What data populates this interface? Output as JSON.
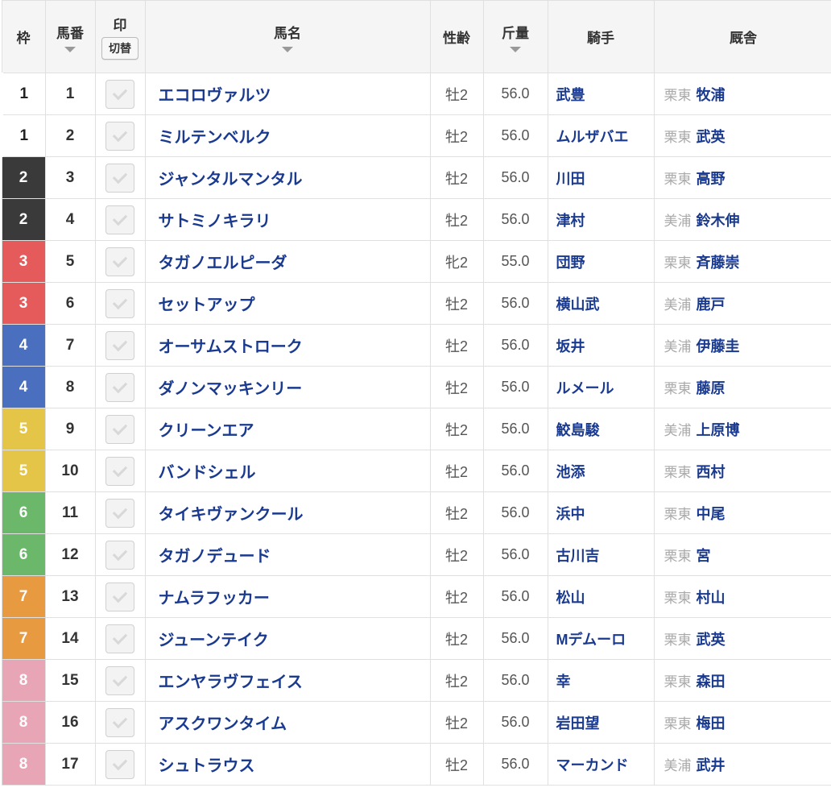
{
  "headers": {
    "waku": "枠",
    "umaban": "馬番",
    "mark": "印",
    "toggle": "切替",
    "name": "馬名",
    "sexage": "性齢",
    "weight": "斤量",
    "jockey": "騎手",
    "stable": "厩舎"
  },
  "colors": {
    "link": "#1a3a8f",
    "header_bg": "#f5f5f5",
    "border": "#e0e0e0",
    "muted": "#aaaaaa",
    "text": "#555555",
    "waku": {
      "1": "#ffffff",
      "2": "#3a3a3a",
      "3": "#e55a5a",
      "4": "#4a6fbf",
      "5": "#e5c548",
      "6": "#6bb86b",
      "7": "#e79a3f",
      "8": "#e8a5b5"
    }
  },
  "rows": [
    {
      "waku": "1",
      "uma": "1",
      "name": "エコロヴァルツ",
      "sexage": "牡2",
      "weight": "56.0",
      "jockey": "武豊",
      "area": "栗東",
      "trainer": "牧浦"
    },
    {
      "waku": "1",
      "uma": "2",
      "name": "ミルテンベルク",
      "sexage": "牡2",
      "weight": "56.0",
      "jockey": "ムルザバエ",
      "area": "栗東",
      "trainer": "武英"
    },
    {
      "waku": "2",
      "uma": "3",
      "name": "ジャンタルマンタル",
      "sexage": "牡2",
      "weight": "56.0",
      "jockey": "川田",
      "area": "栗東",
      "trainer": "高野"
    },
    {
      "waku": "2",
      "uma": "4",
      "name": "サトミノキラリ",
      "sexage": "牡2",
      "weight": "56.0",
      "jockey": "津村",
      "area": "美浦",
      "trainer": "鈴木伸"
    },
    {
      "waku": "3",
      "uma": "5",
      "name": "タガノエルピーダ",
      "sexage": "牝2",
      "weight": "55.0",
      "jockey": "団野",
      "area": "栗東",
      "trainer": "斉藤崇"
    },
    {
      "waku": "3",
      "uma": "6",
      "name": "セットアップ",
      "sexage": "牡2",
      "weight": "56.0",
      "jockey": "横山武",
      "area": "美浦",
      "trainer": "鹿戸"
    },
    {
      "waku": "4",
      "uma": "7",
      "name": "オーサムストローク",
      "sexage": "牡2",
      "weight": "56.0",
      "jockey": "坂井",
      "area": "美浦",
      "trainer": "伊藤圭"
    },
    {
      "waku": "4",
      "uma": "8",
      "name": "ダノンマッキンリー",
      "sexage": "牡2",
      "weight": "56.0",
      "jockey": "ルメール",
      "area": "栗東",
      "trainer": "藤原"
    },
    {
      "waku": "5",
      "uma": "9",
      "name": "クリーンエア",
      "sexage": "牡2",
      "weight": "56.0",
      "jockey": "鮫島駿",
      "area": "美浦",
      "trainer": "上原博"
    },
    {
      "waku": "5",
      "uma": "10",
      "name": "バンドシェル",
      "sexage": "牡2",
      "weight": "56.0",
      "jockey": "池添",
      "area": "栗東",
      "trainer": "西村"
    },
    {
      "waku": "6",
      "uma": "11",
      "name": "タイキヴァンクール",
      "sexage": "牡2",
      "weight": "56.0",
      "jockey": "浜中",
      "area": "栗東",
      "trainer": "中尾"
    },
    {
      "waku": "6",
      "uma": "12",
      "name": "タガノデュード",
      "sexage": "牡2",
      "weight": "56.0",
      "jockey": "古川吉",
      "area": "栗東",
      "trainer": "宮"
    },
    {
      "waku": "7",
      "uma": "13",
      "name": "ナムラフッカー",
      "sexage": "牡2",
      "weight": "56.0",
      "jockey": "松山",
      "area": "栗東",
      "trainer": "村山"
    },
    {
      "waku": "7",
      "uma": "14",
      "name": "ジューンテイク",
      "sexage": "牡2",
      "weight": "56.0",
      "jockey": "Mデムーロ",
      "area": "栗東",
      "trainer": "武英"
    },
    {
      "waku": "8",
      "uma": "15",
      "name": "エンヤラヴフェイス",
      "sexage": "牡2",
      "weight": "56.0",
      "jockey": "幸",
      "area": "栗東",
      "trainer": "森田"
    },
    {
      "waku": "8",
      "uma": "16",
      "name": "アスクワンタイム",
      "sexage": "牡2",
      "weight": "56.0",
      "jockey": "岩田望",
      "area": "栗東",
      "trainer": "梅田"
    },
    {
      "waku": "8",
      "uma": "17",
      "name": "シュトラウス",
      "sexage": "牡2",
      "weight": "56.0",
      "jockey": "マーカンド",
      "area": "美浦",
      "trainer": "武井"
    }
  ]
}
